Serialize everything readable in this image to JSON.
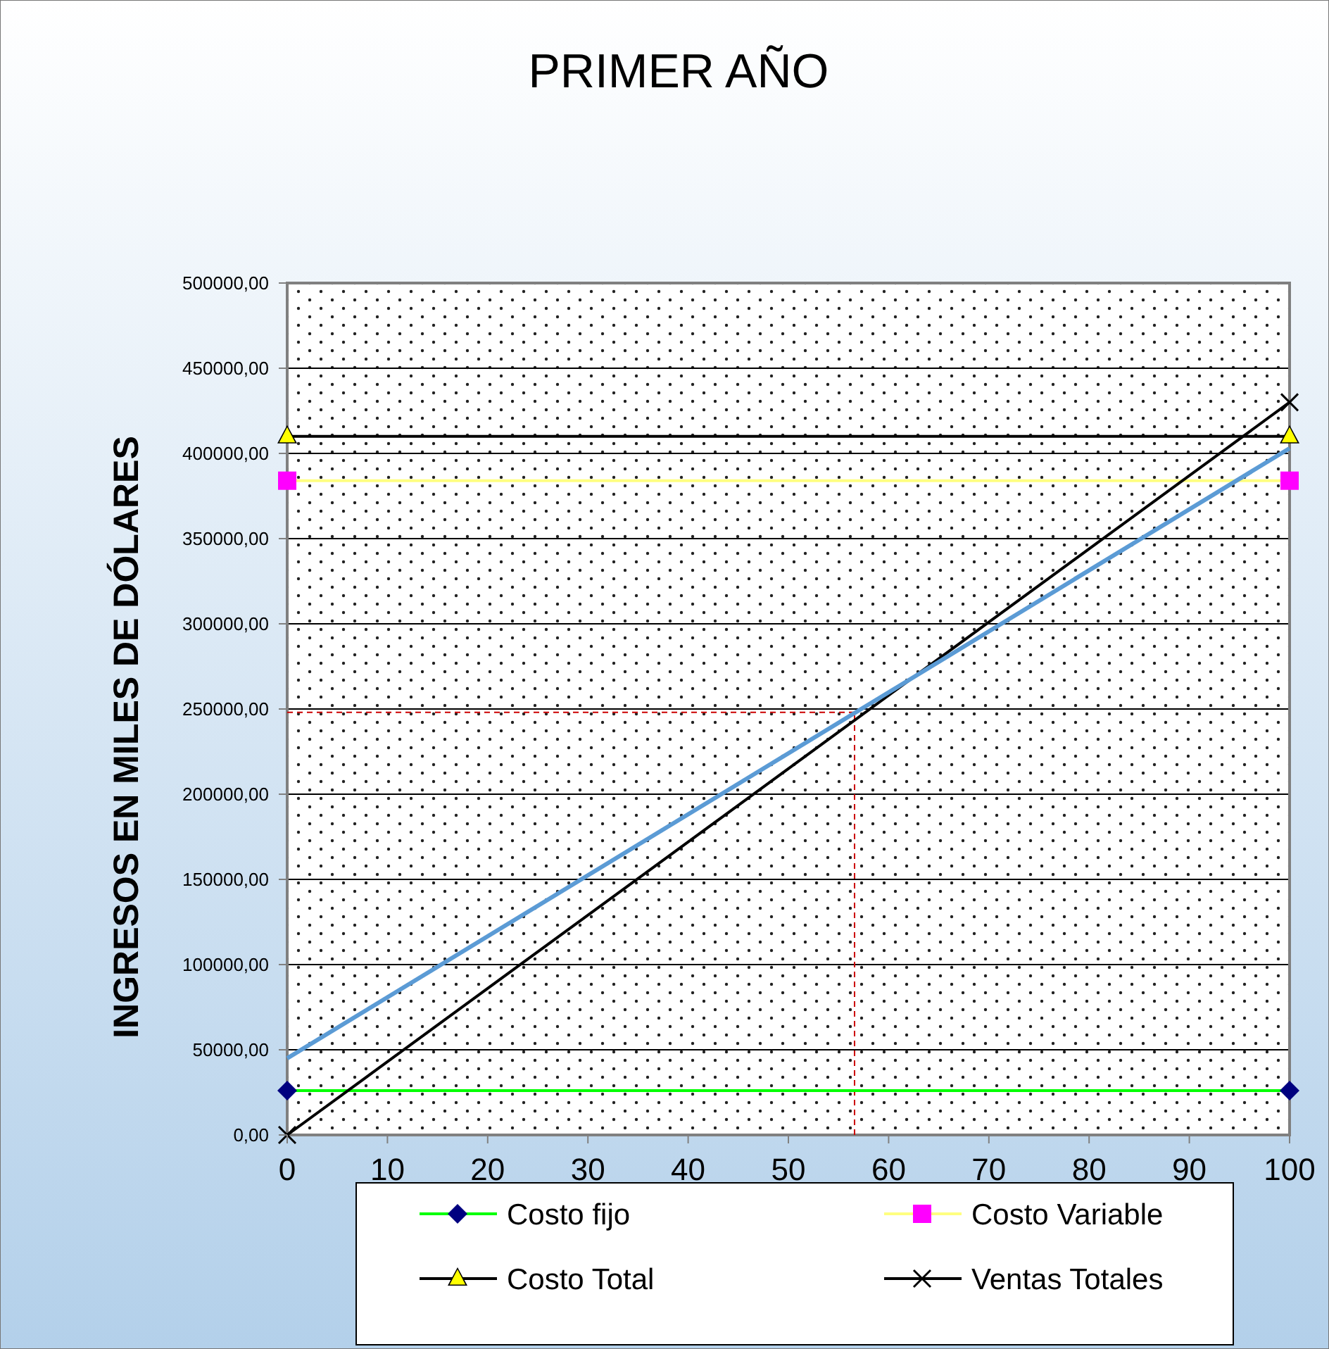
{
  "chart_data": {
    "type": "line",
    "title": "PRIMER AÑO",
    "ylabel": "INGRESOS EN MILES DE DÓLARES",
    "x": [
      0,
      100
    ],
    "series": [
      {
        "name": "Costo fijo",
        "color": "#00ff00",
        "marker": "diamond",
        "values": [
          26000,
          26000
        ]
      },
      {
        "name": "Costo Variable",
        "color": "#ffff80",
        "marker": "square",
        "values": [
          384000,
          384000
        ]
      },
      {
        "name": "Costo Total",
        "color": "#000000",
        "marker": "triangle",
        "values": [
          410000,
          410000
        ]
      },
      {
        "name": "Ventas Totales",
        "color": "#000000",
        "marker": "cross",
        "values": [
          0,
          430000
        ]
      },
      {
        "color": "#5b9bd5",
        "marker": "none",
        "values": [
          45000,
          403000
        ]
      }
    ],
    "xlim": [
      0,
      100
    ],
    "xticks": [
      0,
      10,
      20,
      30,
      40,
      50,
      60,
      70,
      80,
      90,
      100
    ],
    "ylim": [
      0,
      500000
    ],
    "yticks": [
      {
        "value": 0,
        "label": "0,00"
      },
      {
        "value": 50000,
        "label": "50000,00"
      },
      {
        "value": 100000,
        "label": "100000,00"
      },
      {
        "value": 150000,
        "label": "150000,00"
      },
      {
        "value": 200000,
        "label": "200000,00"
      },
      {
        "value": 250000,
        "label": "250000,00"
      },
      {
        "value": 300000,
        "label": "300000,00"
      },
      {
        "value": 350000,
        "label": "350000,00"
      },
      {
        "value": 400000,
        "label": "400000,00"
      },
      {
        "value": 450000,
        "label": "450000,00"
      },
      {
        "value": 500000,
        "label": "500000,00"
      }
    ],
    "ref_lines": [
      {
        "axis": "x",
        "value": 56.6,
        "color": "#cc0000",
        "line_style": "dashed"
      },
      {
        "axis": "y",
        "value": 248000,
        "color": "#cc0000",
        "line_style": "dashed"
      }
    ],
    "grid": "y",
    "legend": "bottom"
  }
}
